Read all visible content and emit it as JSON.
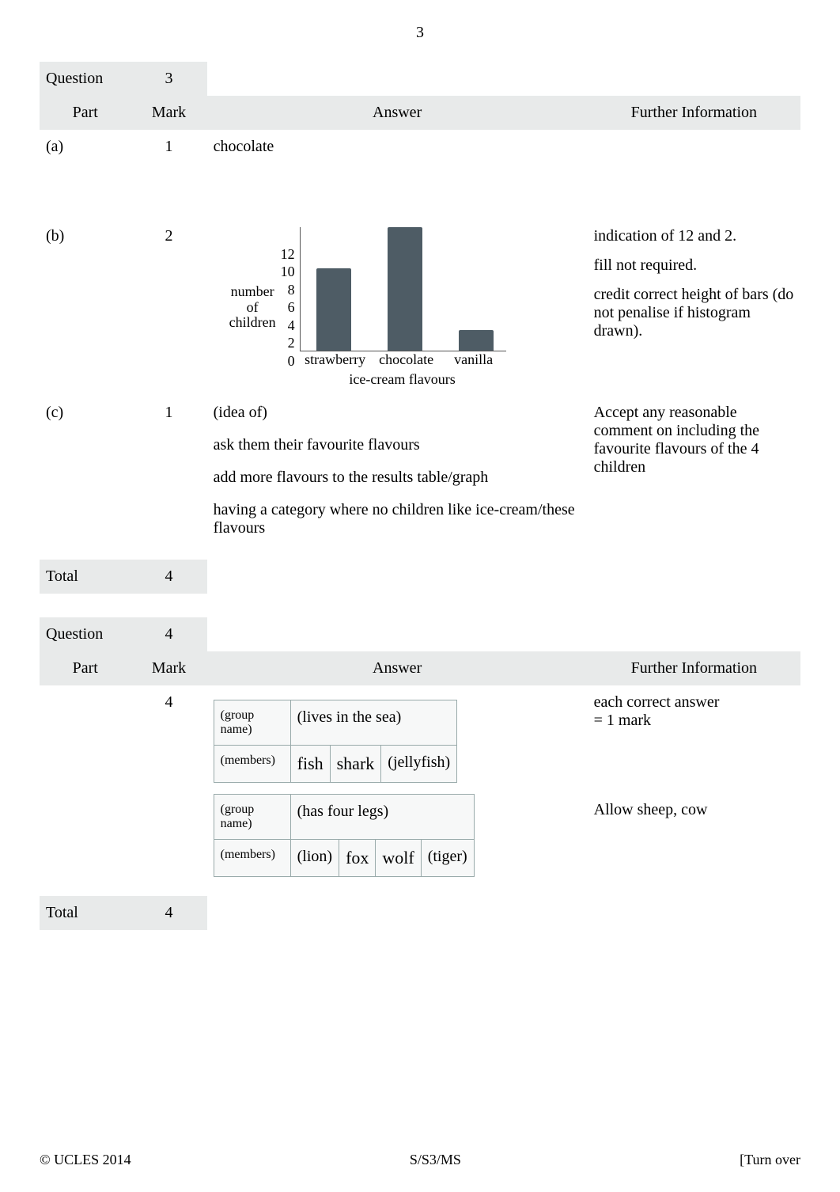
{
  "page_number": "3",
  "columns": {
    "part": "Part",
    "mark": "Mark",
    "answer": "Answer",
    "info": "Further Information"
  },
  "q3": {
    "question_label": "Question",
    "question_number": "3",
    "a": {
      "part": "(a)",
      "mark": "1",
      "answer": "chocolate",
      "info": ""
    },
    "b": {
      "part": "(b)",
      "mark": "2",
      "info1": "indication of 12 and 2.",
      "info2": "fill not required.",
      "info3": "credit correct height of bars (do not penalise if histogram drawn).",
      "chart": {
        "y_label_line1": "number",
        "y_label_line2": "of",
        "y_label_line3": "children",
        "y_ticks": [
          "12",
          "10",
          "8",
          "6",
          "4",
          "2",
          "0"
        ],
        "categories": [
          "strawberry",
          "chocolate",
          "vanilla"
        ],
        "values": [
          8,
          12,
          2
        ],
        "ymax": 12,
        "bar_color": "#4e5c65",
        "title": "ice-cream flavours"
      }
    },
    "c": {
      "part": "(c)",
      "mark": "1",
      "line1": "(idea of)",
      "line2": "ask them their favourite flavours",
      "line3": "add more flavours to the results table/graph",
      "line4": "having a category where no children like ice-cream/these flavours",
      "info": "Accept   any reasonable comment on including the favourite flavours of the 4 children"
    },
    "total": {
      "label": "Total",
      "mark": "4"
    }
  },
  "q4": {
    "question_label": "Question",
    "question_number": "4",
    "mark": "4",
    "info1": "each correct answer",
    "info2": "= 1 mark",
    "info3": "Allow  sheep, cow",
    "group1": {
      "group_name_label": "(group name)",
      "group_name": "(lives in the sea)",
      "members_label": "(members)",
      "m1": "fish",
      "m2": "shark",
      "m3": "(jellyfish)"
    },
    "group2": {
      "group_name_label": "(group name)",
      "group_name": "(has four legs)",
      "members_label": "(members)",
      "m1": "(lion)",
      "m2": "fox",
      "m3": "wolf",
      "m4": "(tiger)"
    },
    "total": {
      "label": "Total",
      "mark": "4"
    }
  },
  "footer": {
    "left": "© UCLES 2014",
    "center": "S/S3/MS",
    "right": "[Turn over"
  }
}
